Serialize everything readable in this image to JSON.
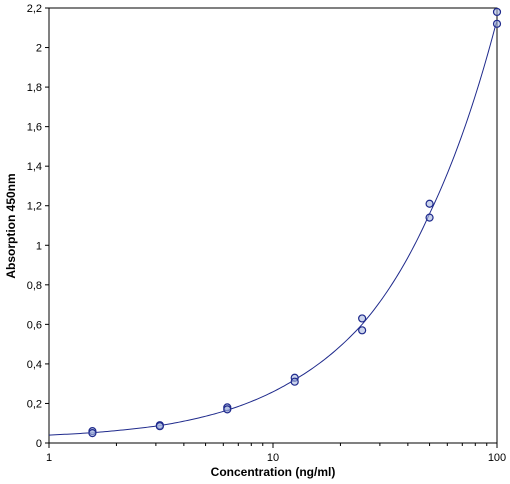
{
  "chart_data": {
    "type": "scatter",
    "xlabel": "Concentration (ng/ml)",
    "ylabel": "Absorption 450nm",
    "x_scale": "log",
    "xlim": [
      1,
      100
    ],
    "ylim": [
      0,
      2.2
    ],
    "x_ticks": [
      "1",
      "10",
      "100"
    ],
    "y_ticks": [
      "0",
      "0,2",
      "0,4",
      "0,6",
      "0,8",
      "1",
      "1,2",
      "1,4",
      "1,6",
      "1,8",
      "2",
      "2,2"
    ],
    "grid": false,
    "points": [
      {
        "x": 1.5625,
        "y": 0.06
      },
      {
        "x": 1.5625,
        "y": 0.05
      },
      {
        "x": 3.125,
        "y": 0.09
      },
      {
        "x": 3.125,
        "y": 0.085
      },
      {
        "x": 6.25,
        "y": 0.18
      },
      {
        "x": 6.25,
        "y": 0.17
      },
      {
        "x": 12.5,
        "y": 0.33
      },
      {
        "x": 12.5,
        "y": 0.31
      },
      {
        "x": 25,
        "y": 0.63
      },
      {
        "x": 25,
        "y": 0.57
      },
      {
        "x": 50,
        "y": 1.21
      },
      {
        "x": 50,
        "y": 1.14
      },
      {
        "x": 100,
        "y": 2.18
      },
      {
        "x": 100,
        "y": 2.12
      }
    ],
    "fit_curve": [
      {
        "x": 1,
        "y": 0.04
      },
      {
        "x": 1.5625,
        "y": 0.052
      },
      {
        "x": 3.125,
        "y": 0.088
      },
      {
        "x": 6.25,
        "y": 0.166
      },
      {
        "x": 12.5,
        "y": 0.32
      },
      {
        "x": 25,
        "y": 0.6
      },
      {
        "x": 50,
        "y": 1.16
      },
      {
        "x": 100,
        "y": 2.14
      }
    ],
    "colors": {
      "marker": "#1f2a8c",
      "marker_fill": "#a8b8e0",
      "curve": "#1f2a8c",
      "axis": "#000000"
    }
  }
}
